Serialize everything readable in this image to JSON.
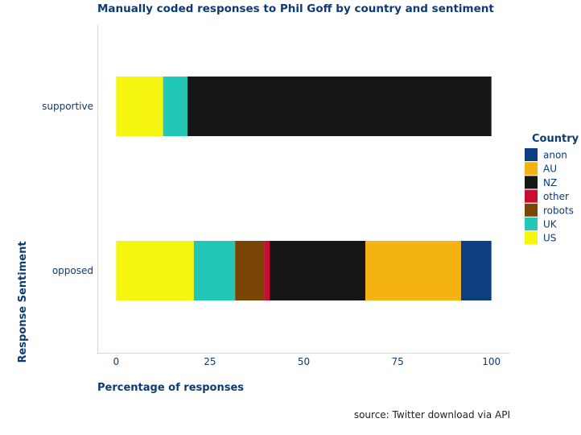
{
  "chart_data": {
    "type": "bar",
    "orientation": "horizontal",
    "stacked": true,
    "title": "Manually coded responses to Phil Goff by country and sentiment",
    "xlabel": "Percentage of responses",
    "ylabel": "Response Sentiment",
    "caption": "source: Twitter download via API",
    "xlim": [
      -5,
      105
    ],
    "xticks": [
      0,
      25,
      50,
      75,
      100
    ],
    "categories": [
      "opposed",
      "supportive"
    ],
    "legend_title": "Country",
    "legend_position": "right",
    "series": [
      {
        "name": "US",
        "color": "#f5f50f",
        "values": [
          20.7,
          12.5
        ]
      },
      {
        "name": "UK",
        "color": "#22c7b8",
        "values": [
          11.0,
          6.5
        ]
      },
      {
        "name": "robots",
        "color": "#7a4505",
        "values": [
          7.7,
          0
        ]
      },
      {
        "name": "other",
        "color": "#c8102e",
        "values": [
          1.5,
          0
        ]
      },
      {
        "name": "NZ",
        "color": "#161616",
        "values": [
          25.5,
          81.0
        ]
      },
      {
        "name": "AU",
        "color": "#f5b213",
        "values": [
          25.5,
          0
        ]
      },
      {
        "name": "anon",
        "color": "#0d3f80",
        "values": [
          8.1,
          0
        ]
      }
    ],
    "legend_order": [
      "anon",
      "AU",
      "NZ",
      "other",
      "robots",
      "UK",
      "US"
    ],
    "grid": false
  }
}
